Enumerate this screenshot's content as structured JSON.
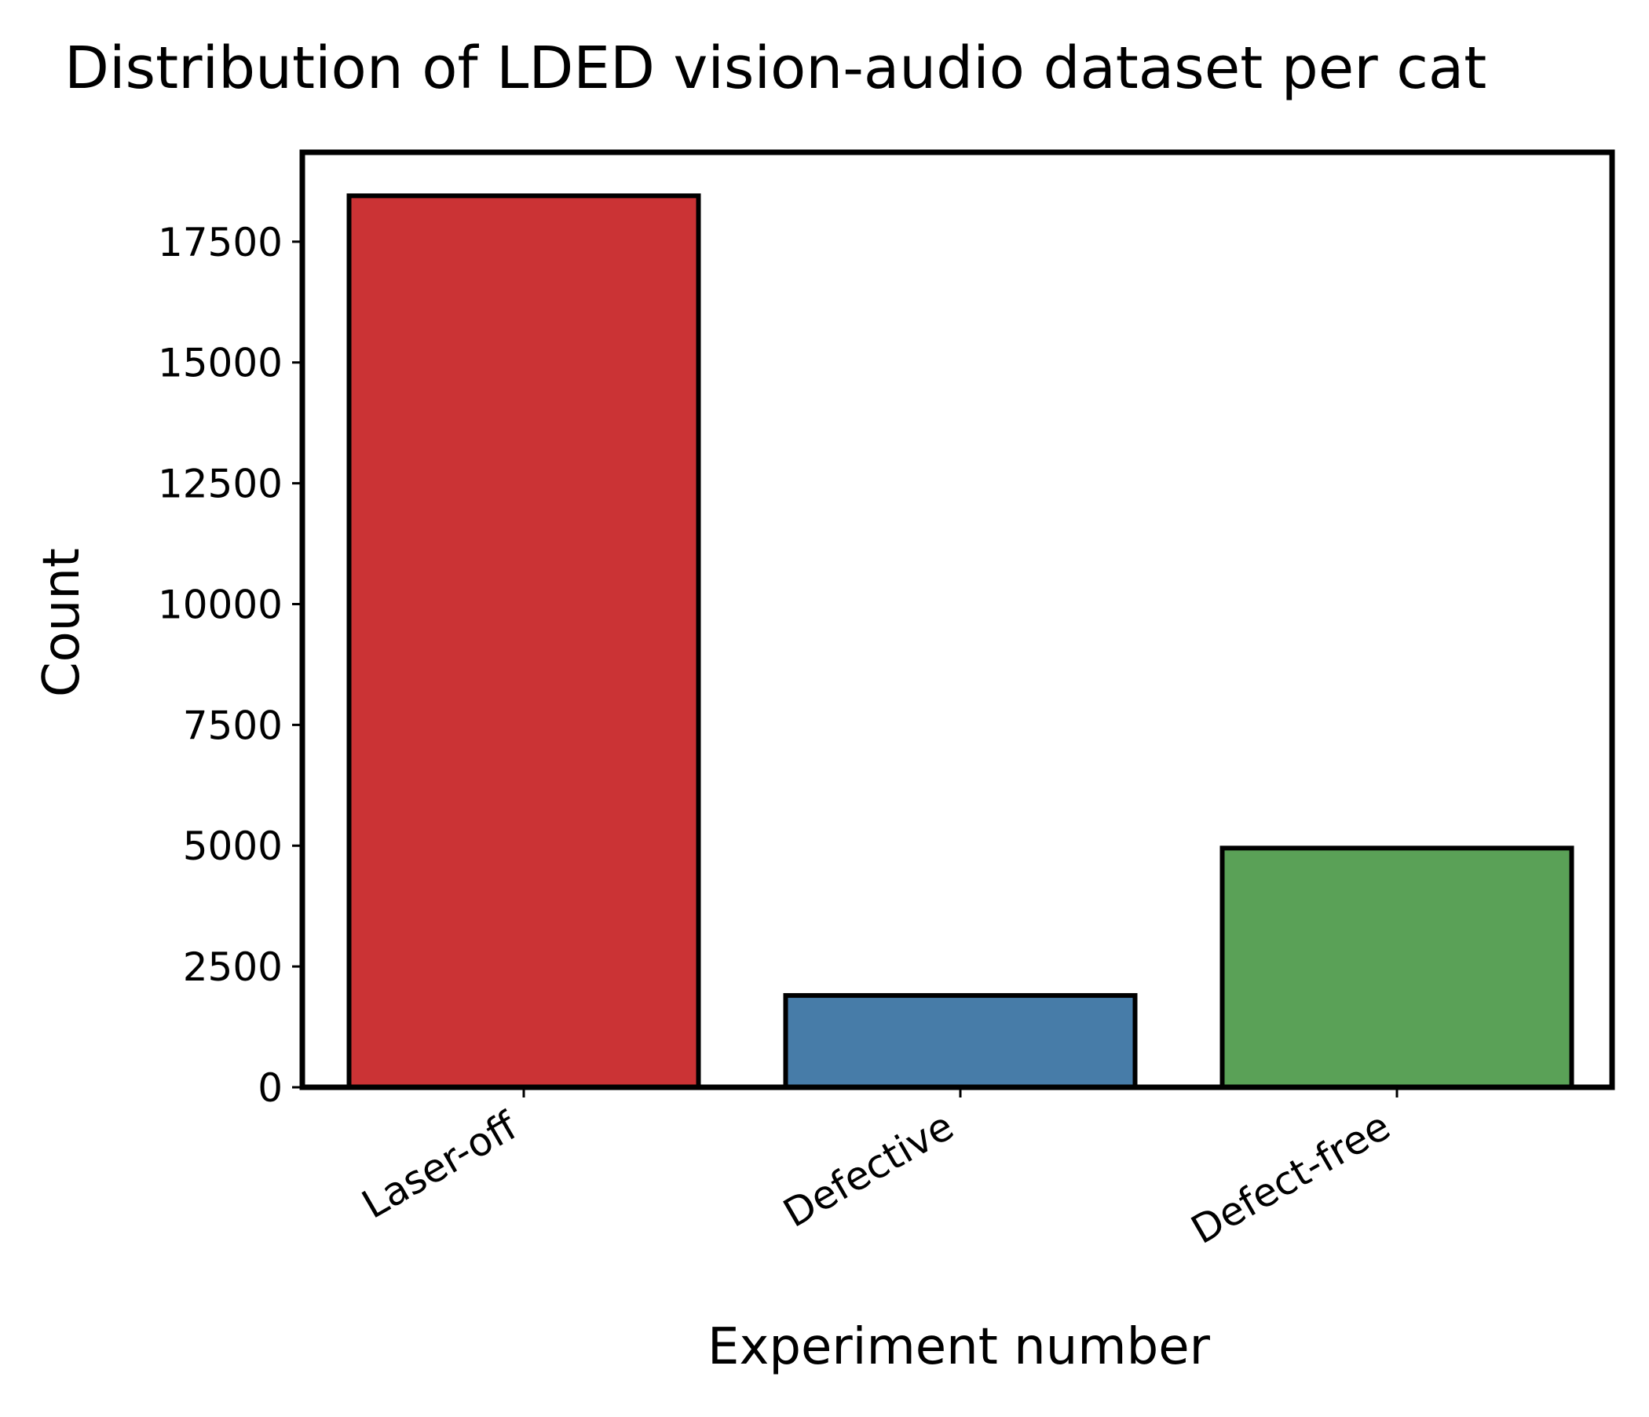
{
  "chart_data": {
    "type": "bar",
    "title": "Distribution of LDED vision-audio dataset per cat",
    "xlabel": "Experiment number",
    "ylabel": "Count",
    "categories": [
      "Laser-off",
      "Defective",
      "Defect-free"
    ],
    "values": [
      18450,
      1900,
      4950
    ],
    "colors": [
      "#cb3335",
      "#477ca8",
      "#5aa157"
    ],
    "ylim": [
      0,
      19350
    ],
    "yticks": [
      0,
      2500,
      5000,
      7500,
      10000,
      12500,
      15000,
      17500
    ],
    "grid": false,
    "legend": "none"
  }
}
